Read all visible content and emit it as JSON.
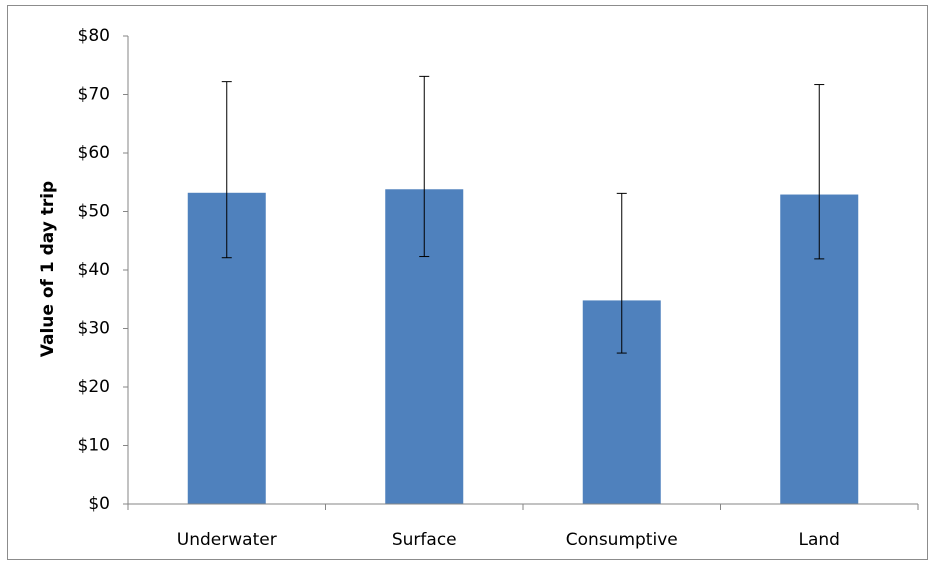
{
  "chart_data": {
    "type": "bar",
    "title": "",
    "xlabel": "",
    "ylabel": "Value of 1 day trip",
    "categories": [
      "Underwater",
      "Surface",
      "Consumptive",
      "Land"
    ],
    "series": [
      {
        "values": [
          53.2,
          53.8,
          34.8,
          52.9
        ],
        "error_low": [
          42.1,
          42.3,
          25.8,
          41.9
        ],
        "error_high": [
          72.2,
          73.1,
          53.1,
          71.7
        ],
        "color": "#4f81bd"
      }
    ],
    "ylim": [
      0,
      80
    ],
    "yticks": [
      0,
      10,
      20,
      30,
      40,
      50,
      60,
      70,
      80
    ],
    "ytick_labels": [
      "$0",
      "$10",
      "$20",
      "$30",
      "$40",
      "$50",
      "$60",
      "$70",
      "$80"
    ],
    "grid": false,
    "legend": "none",
    "error_bars": true
  }
}
